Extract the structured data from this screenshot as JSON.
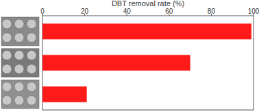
{
  "chart_data": {
    "type": "bar",
    "orientation": "horizontal",
    "xlabel": "DBT removal rate (%)",
    "categories": [
      null,
      null,
      null
    ],
    "values": [
      99,
      70,
      21
    ],
    "color": "#ff1a1a",
    "xlim": [
      0,
      100
    ],
    "xticks": [
      0,
      20,
      40,
      60,
      80,
      100
    ],
    "grid": false
  }
}
